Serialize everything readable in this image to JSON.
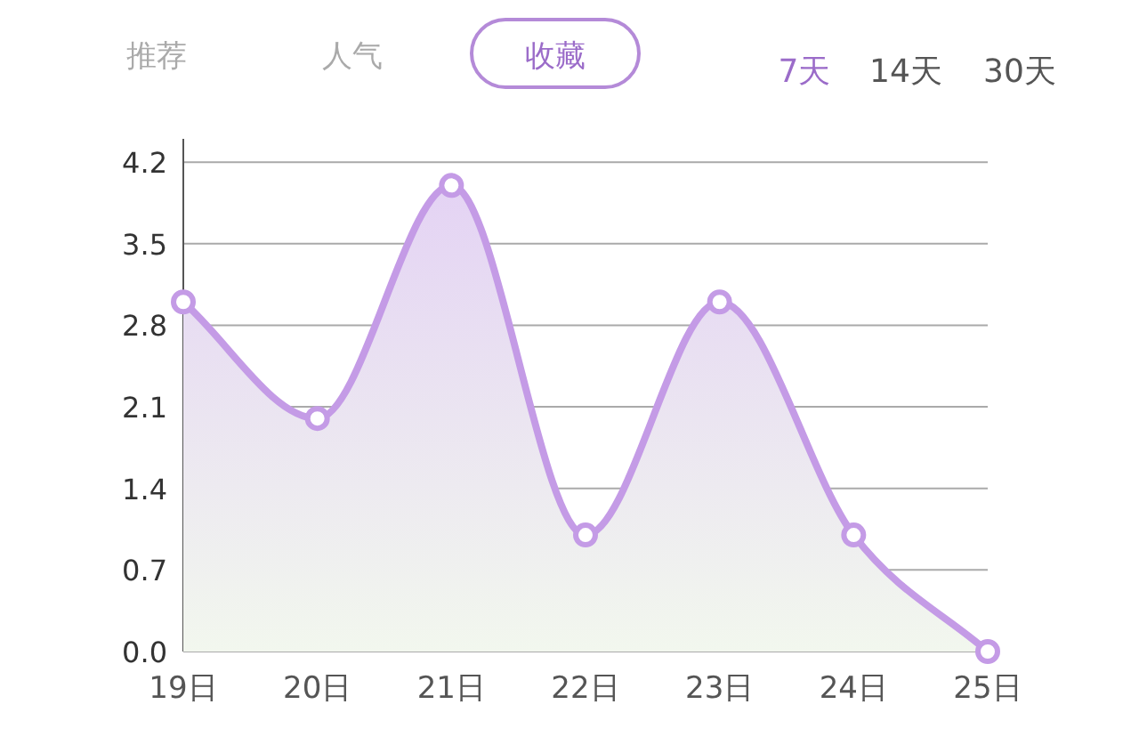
{
  "chart_data": {
    "type": "area",
    "categories": [
      "19日",
      "20日",
      "21日",
      "22日",
      "23日",
      "24日",
      "25日"
    ],
    "series": [
      {
        "color": "#c49be6",
        "values": [
          3,
          2,
          4,
          1,
          3,
          1,
          0
        ]
      }
    ],
    "ylim": [
      0,
      4.4
    ],
    "yticks": [
      {
        "value": 0,
        "label": "0.0"
      },
      {
        "value": 0.7,
        "label": "0.7"
      },
      {
        "value": 1.4,
        "label": "1.4"
      },
      {
        "value": 2.1,
        "label": "2.1"
      },
      {
        "value": 2.8,
        "label": "2.8"
      },
      {
        "value": 3.5,
        "label": "3.5"
      },
      {
        "value": 4.2,
        "label": "4.2"
      }
    ],
    "grid": "y",
    "marker": "circle",
    "line_style": "solid",
    "annotations": [
      "推荐",
      "人气",
      "收藏",
      "7天",
      "14天",
      "30天"
    ]
  }
}
